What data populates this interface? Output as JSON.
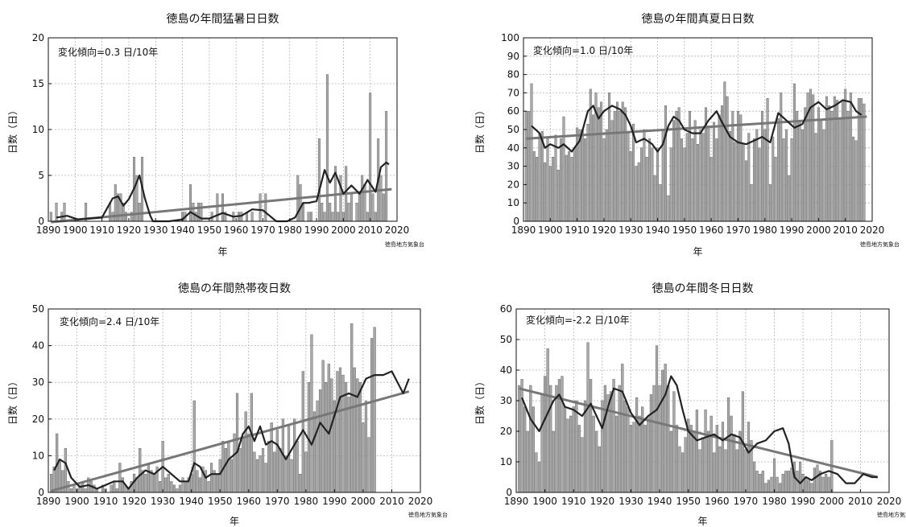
{
  "colors": {
    "bar_fill": "#a8a8a8",
    "bar_stroke": "#555555",
    "moving_avg": "#222222",
    "trend_line": "#777777",
    "grid": "#b5b5b5"
  },
  "charts": [
    {
      "title": "徳島の年間猛暑日日数",
      "ylabel": "日数（日）",
      "xlabel": "年",
      "trend_text": "変化傾向=0.3 日/10年",
      "source": "徳島地方気象台",
      "xticks": [
        "1890",
        "1900",
        "1910",
        "1920",
        "1930",
        "1940",
        "1950",
        "1960",
        "1970",
        "1980",
        "1990",
        "2000",
        "2010",
        "2020"
      ],
      "yticks": [
        "0",
        "5",
        "10",
        "15",
        "20"
      ]
    },
    {
      "title": "徳島の年間真夏日日数",
      "ylabel": "日数（日）",
      "xlabel": "年",
      "trend_text": "変化傾向=1.0 日/10年",
      "source": "徳島地方気象台",
      "xticks": [
        "1890",
        "1900",
        "1910",
        "1920",
        "1930",
        "1940",
        "1950",
        "1960",
        "1970",
        "1980",
        "1990",
        "2000",
        "2010",
        "2020"
      ],
      "yticks": [
        "0",
        "10",
        "20",
        "30",
        "40",
        "50",
        "60",
        "70",
        "80",
        "90",
        "100"
      ]
    },
    {
      "title": "徳島の年間熱帯夜日数",
      "ylabel": "日数（日）",
      "xlabel": "年",
      "trend_text": "変化傾向=2.4 日/10年",
      "source": "徳島地方気象台",
      "xticks": [
        "1890",
        "1900",
        "1910",
        "1920",
        "1930",
        "1940",
        "1950",
        "1960",
        "1970",
        "1980",
        "1990",
        "2000",
        "2010",
        "2020"
      ],
      "yticks": [
        "0",
        "10",
        "20",
        "30",
        "40",
        "50"
      ]
    },
    {
      "title": "徳島の年間冬日日数",
      "ylabel": "日数（日）",
      "xlabel": "年",
      "trend_text": "変化傾向=-2.2 日/10年",
      "source": "徳島地方気象台",
      "xticks": [
        "1890",
        "1900",
        "1910",
        "1920",
        "1930",
        "1940",
        "1950",
        "1960",
        "1970",
        "1980",
        "1990",
        "2000",
        "2010",
        "2020"
      ],
      "yticks": [
        "0",
        "10",
        "20",
        "30",
        "40",
        "50",
        "60"
      ]
    }
  ],
  "chart_data": [
    {
      "type": "bar",
      "title": "徳島の年間猛暑日日数",
      "xlabel": "年",
      "ylabel": "日数（日）",
      "xlim": [
        1890,
        2020
      ],
      "ylim": [
        0,
        20
      ],
      "grid": true,
      "x_start": 1891,
      "values": [
        1,
        0,
        2,
        0,
        1,
        2,
        0,
        0,
        0,
        0,
        0,
        0,
        0,
        2,
        0,
        0,
        0,
        0,
        0,
        0,
        0,
        0,
        2,
        1,
        4,
        3,
        3,
        2,
        1,
        0,
        1,
        7,
        5,
        2,
        7,
        0,
        0,
        0,
        0,
        0,
        0,
        0,
        0,
        0,
        0,
        0,
        0,
        0,
        0,
        1,
        1,
        0,
        4,
        2,
        1,
        2,
        2,
        0,
        0,
        0,
        1,
        0,
        3,
        0,
        3,
        1,
        0,
        0,
        1,
        0,
        1,
        1,
        0,
        1,
        0,
        1,
        0,
        0,
        3,
        0,
        3,
        0,
        0,
        0,
        0,
        0,
        0,
        0,
        0,
        0,
        0,
        0,
        5,
        4,
        2,
        0,
        1,
        1,
        0,
        0,
        9,
        2,
        1,
        16,
        2,
        1,
        6,
        1,
        5,
        1,
        6,
        2,
        3,
        0,
        2,
        3,
        5,
        4,
        1,
        14,
        3,
        1,
        9,
        5,
        3,
        12
      ],
      "trend_line": {
        "x": [
          1891,
          2018
        ],
        "y": [
          -0.1,
          3.5
        ]
      },
      "moving_average": {
        "x": [
          1893,
          1897,
          1901,
          1905,
          1910,
          1914,
          1916,
          1918,
          1920,
          1922,
          1924,
          1926,
          1928,
          1929,
          1935,
          1940,
          1943,
          1947,
          1950,
          1955,
          1959,
          1962,
          1966,
          1970,
          1975,
          1979,
          1982,
          1985,
          1987,
          1990,
          1993,
          1995,
          1997,
          2000,
          2003,
          2006,
          2009,
          2012,
          2014,
          2016,
          2017
        ],
        "y": [
          0.4,
          0.6,
          0.2,
          0.3,
          0.4,
          2.5,
          2.7,
          1.7,
          2.4,
          3.6,
          5.0,
          2.5,
          0.6,
          0,
          0,
          0.2,
          1.0,
          0.3,
          0.3,
          0.9,
          0.5,
          0.6,
          1.3,
          1.2,
          0,
          0,
          0.4,
          2.0,
          2.0,
          2.2,
          5.6,
          4.2,
          5.3,
          3.0,
          3.9,
          3.0,
          4.5,
          3.2,
          5.9,
          6.4,
          6.2
        ]
      }
    },
    {
      "type": "bar",
      "title": "徳島の年間真夏日日数",
      "xlabel": "年",
      "ylabel": "日数（日）",
      "xlim": [
        1890,
        2020
      ],
      "ylim": [
        0,
        100
      ],
      "grid": true,
      "x_start": 1891,
      "values": [
        60,
        60,
        75,
        38,
        35,
        48,
        49,
        32,
        45,
        30,
        35,
        47,
        28,
        45,
        57,
        36,
        38,
        35,
        40,
        51,
        50,
        50,
        45,
        53,
        72,
        58,
        70,
        62,
        65,
        45,
        50,
        70,
        55,
        60,
        65,
        60,
        65,
        62,
        48,
        38,
        53,
        30,
        32,
        40,
        50,
        35,
        45,
        40,
        25,
        40,
        20,
        50,
        63,
        14,
        40,
        55,
        60,
        62,
        45,
        40,
        48,
        60,
        45,
        55,
        42,
        50,
        48,
        62,
        52,
        35,
        54,
        45,
        58,
        63,
        76,
        68,
        49,
        60,
        43,
        60,
        58,
        42,
        33,
        48,
        20,
        45,
        50,
        40,
        60,
        50,
        67,
        20,
        46,
        35,
        56,
        70,
        45,
        50,
        25,
        45,
        75,
        60,
        55,
        50,
        62,
        70,
        72,
        69,
        48,
        62,
        55,
        50,
        68,
        63,
        60,
        68,
        66,
        56,
        66,
        72,
        60,
        70,
        46,
        44,
        67,
        67,
        64
      ],
      "trend_line": {
        "x": [
          1891,
          2018
        ],
        "y": [
          45,
          57
        ]
      },
      "moving_average": {
        "x": [
          1893,
          1896,
          1898,
          1900,
          1903,
          1905,
          1908,
          1911,
          1914,
          1916,
          1918,
          1920,
          1923,
          1926,
          1928,
          1930,
          1932,
          1935,
          1938,
          1940,
          1942,
          1944,
          1946,
          1948,
          1950,
          1953,
          1956,
          1959,
          1962,
          1964,
          1967,
          1970,
          1973,
          1976,
          1979,
          1982,
          1985,
          1988,
          1991,
          1994,
          1997,
          2000,
          2003,
          2006,
          2009,
          2012,
          2014,
          2016
        ],
        "y": [
          52,
          48,
          40,
          42,
          40,
          42,
          38,
          44,
          60,
          63,
          56,
          60,
          63,
          61,
          58,
          52,
          43,
          45,
          42,
          38,
          42,
          52,
          57,
          55,
          50,
          48,
          48,
          55,
          60,
          54,
          46,
          43,
          42,
          44,
          46,
          43,
          59,
          55,
          51,
          53,
          62,
          65,
          61,
          63,
          66,
          65,
          60,
          58
        ]
      }
    },
    {
      "type": "bar",
      "title": "徳島の年間熱帯夜日数",
      "xlabel": "年",
      "ylabel": "日数（日）",
      "xlim": [
        1890,
        2020
      ],
      "ylim": [
        0,
        50
      ],
      "grid": true,
      "x_start": 1891,
      "values": [
        5,
        7,
        16,
        9,
        6,
        12,
        3,
        1,
        2,
        1,
        2,
        3,
        1,
        4,
        3,
        2,
        1,
        0,
        2,
        1,
        0,
        2,
        3,
        1,
        8,
        4,
        2,
        1,
        3,
        5,
        4,
        12,
        6,
        5,
        8,
        6,
        5,
        7,
        3,
        14,
        4,
        5,
        3,
        2,
        1,
        2,
        4,
        3,
        4,
        5,
        25,
        6,
        4,
        7,
        6,
        3,
        8,
        6,
        5,
        9,
        14,
        12,
        14,
        9,
        16,
        27,
        12,
        15,
        22,
        16,
        27,
        11,
        9,
        10,
        12,
        8,
        14,
        19,
        11,
        17,
        12,
        20,
        10,
        18,
        9,
        20,
        14,
        5,
        33,
        11,
        30,
        43,
        22,
        25,
        28,
        36,
        30,
        35,
        31,
        25,
        33,
        34,
        32,
        30,
        26,
        46,
        34,
        31,
        30,
        19,
        25,
        15,
        42,
        45
      ],
      "trend_line": {
        "x": [
          1891,
          2016
        ],
        "y": [
          0.4,
          27.5
        ]
      },
      "moving_average": {
        "x": [
          1892,
          1894,
          1896,
          1898,
          1901,
          1904,
          1907,
          1910,
          1913,
          1916,
          1918,
          1921,
          1924,
          1927,
          1930,
          1933,
          1936,
          1939,
          1941,
          1943,
          1945,
          1947,
          1950,
          1953,
          1956,
          1958,
          1960,
          1962,
          1964,
          1966,
          1968,
          1970,
          1973,
          1976,
          1979,
          1982,
          1985,
          1988,
          1990,
          1992,
          1995,
          1998,
          2001,
          2004,
          2007,
          2010,
          2012,
          2014,
          2016
        ],
        "y": [
          6,
          9,
          8,
          4,
          1.5,
          2,
          1,
          2,
          3,
          3,
          1,
          4,
          6,
          5,
          7,
          5,
          3,
          3,
          8,
          7,
          4,
          5,
          5,
          9,
          11,
          16,
          18,
          14,
          18,
          13,
          14,
          13,
          9,
          13,
          17,
          13,
          19,
          16,
          21,
          26,
          27,
          26,
          31,
          32,
          32,
          33,
          30,
          27,
          31
        ]
      }
    },
    {
      "type": "bar",
      "title": "徳島の年間冬日日数",
      "xlabel": "年",
      "ylabel": "日数（日）",
      "xlim": [
        1890,
        2020
      ],
      "ylim": [
        0,
        60
      ],
      "grid": true,
      "x_start": 1891,
      "values": [
        35,
        37,
        28,
        20,
        35,
        28,
        13,
        10,
        32,
        38,
        47,
        35,
        20,
        35,
        37,
        38,
        28,
        24,
        25,
        28,
        30,
        22,
        18,
        30,
        49,
        37,
        25,
        20,
        15,
        30,
        35,
        32,
        33,
        37,
        25,
        35,
        42,
        30,
        28,
        22,
        23,
        31,
        25,
        28,
        22,
        25,
        32,
        35,
        48,
        35,
        40,
        42,
        35,
        20,
        33,
        22,
        15,
        13,
        18,
        24,
        22,
        20,
        27,
        14,
        18,
        27,
        20,
        25,
        13,
        22,
        15,
        23,
        14,
        31,
        25,
        19,
        14,
        20,
        33,
        14,
        23,
        17,
        10,
        7,
        6,
        7,
        3,
        4,
        5,
        11,
        5,
        3,
        6,
        7,
        7,
        8,
        10,
        7,
        10,
        6,
        5,
        4,
        3,
        8,
        9,
        7,
        5,
        6,
        5,
        17
      ],
      "trend_line": {
        "x": [
          1891,
          2016
        ],
        "y": [
          34,
          5
        ]
      },
      "moving_average": {
        "x": [
          1892,
          1895,
          1898,
          1901,
          1903,
          1905,
          1907,
          1910,
          1913,
          1916,
          1918,
          1920,
          1922,
          1924,
          1927,
          1930,
          1933,
          1936,
          1939,
          1942,
          1944,
          1946,
          1948,
          1950,
          1953,
          1956,
          1959,
          1962,
          1965,
          1968,
          1971,
          1974,
          1977,
          1980,
          1983,
          1985,
          1987,
          1989,
          1991,
          1993,
          1996,
          1999,
          2002,
          2005,
          2008,
          2011,
          2014,
          2016
        ],
        "y": [
          31,
          24,
          20,
          26,
          30,
          32,
          28,
          27,
          25,
          29,
          25,
          21,
          28,
          34,
          33,
          26,
          22,
          25,
          27,
          32,
          38,
          35,
          27,
          20,
          17,
          18,
          19,
          17,
          19,
          18,
          13,
          16,
          17,
          20,
          21,
          16,
          5,
          3,
          5,
          4,
          6,
          7,
          6,
          3,
          3,
          6,
          5,
          5
        ]
      }
    }
  ]
}
